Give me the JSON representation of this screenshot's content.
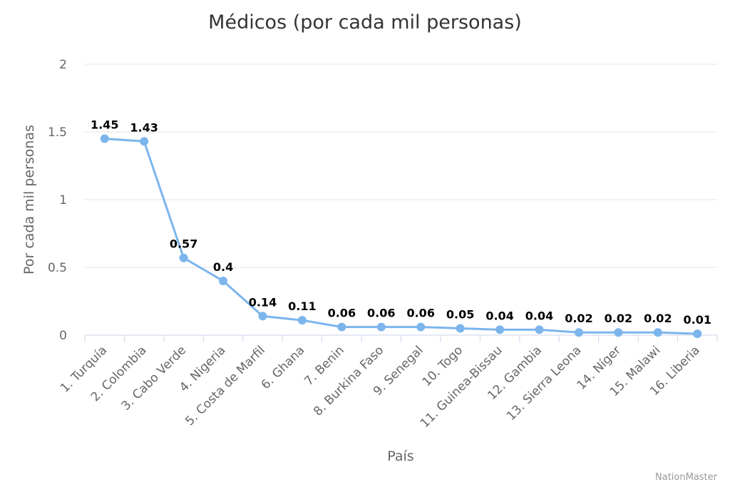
{
  "chart_data": {
    "type": "line",
    "title": "Médicos (por cada mil personas)",
    "xlabel": "País",
    "ylabel": "Por cada mil personas",
    "ylim": [
      0,
      2
    ],
    "yticks": [
      "0",
      "0.5",
      "1",
      "1.5",
      "2"
    ],
    "grid": true,
    "color": "#7cb5ec",
    "categories": [
      "1. Turquía",
      "2. Colombia",
      "3. Cabo Verde",
      "4. Nigeria",
      "5. Costa de Marfil",
      "6. Ghana",
      "7. Benin",
      "8. Burkina Faso",
      "9. Senegal",
      "10. Togo",
      "11. Guinea-Bissau",
      "12. Gambia",
      "13. Sierra Leona",
      "14. Níger",
      "15. Malawi",
      "16. Liberia"
    ],
    "values": [
      1.45,
      1.43,
      0.57,
      0.4,
      0.14,
      0.11,
      0.06,
      0.06,
      0.06,
      0.05,
      0.04,
      0.04,
      0.02,
      0.02,
      0.02,
      0.01
    ],
    "data_labels": [
      "1.45",
      "1.43",
      "0.57",
      "0.4",
      "0.14",
      "0.11",
      "0.06",
      "0.06",
      "0.06",
      "0.05",
      "0.04",
      "0.04",
      "0.02",
      "0.02",
      "0.02",
      "0.01"
    ]
  },
  "credit": "NationMaster"
}
